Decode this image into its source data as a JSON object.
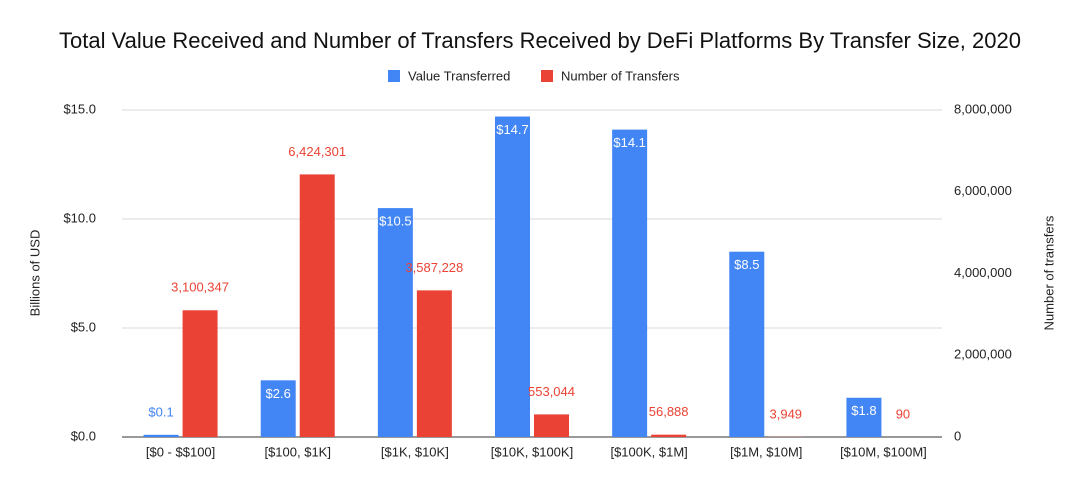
{
  "chart_data": {
    "type": "bar",
    "title": "Total Value Received and Number of Transfers Received by DeFi Platforms By Transfer Size, 2020",
    "y_label": "Billions of USD",
    "y2_label": "Number of transfers",
    "categories": [
      "[$0 - $$100]",
      "[$100, $1K]",
      "[$1K, $10K]",
      "[$10K, $100K]",
      "[$100K, $1M]",
      "[$1M, $10M]",
      "[$10M, $100M]"
    ],
    "series": [
      {
        "name": "Value Transferred",
        "color": "#4285f4",
        "values": [
          0.1,
          2.6,
          10.5,
          14.7,
          14.1,
          8.5,
          1.8
        ],
        "value_labels": [
          "$0.1",
          "$2.6",
          "$10.5",
          "$14.7",
          "$14.1",
          "$8.5",
          "$1.8"
        ]
      },
      {
        "name": "Number of Transfers",
        "color": "#ea4335",
        "axis": "y2",
        "values": [
          3100347,
          6424301,
          3587228,
          553044,
          56888,
          3949,
          90
        ],
        "value_labels": [
          "3,100,347",
          "6,424,301",
          "3,587,228",
          "553,044",
          "56,888",
          "3,949",
          "90"
        ]
      }
    ],
    "ylim": [
      0,
      15
    ],
    "yticks": [
      {
        "value": 0,
        "label": "$0.0"
      },
      {
        "value": 5,
        "label": "$5.0"
      },
      {
        "value": 10,
        "label": "$10.0"
      },
      {
        "value": 15,
        "label": "$15.0"
      }
    ],
    "y2lim": [
      0,
      8000000
    ],
    "y2ticks": [
      0,
      {
        "value": 2000000,
        "label": "2,000,000"
      },
      {
        "value": 4000000,
        "label": "4,000,000"
      },
      {
        "value": 6000000,
        "label": "6,000,000"
      },
      {
        "value": 8000000,
        "label": "8,000,000"
      }
    ],
    "grid": true,
    "legend": "top"
  }
}
